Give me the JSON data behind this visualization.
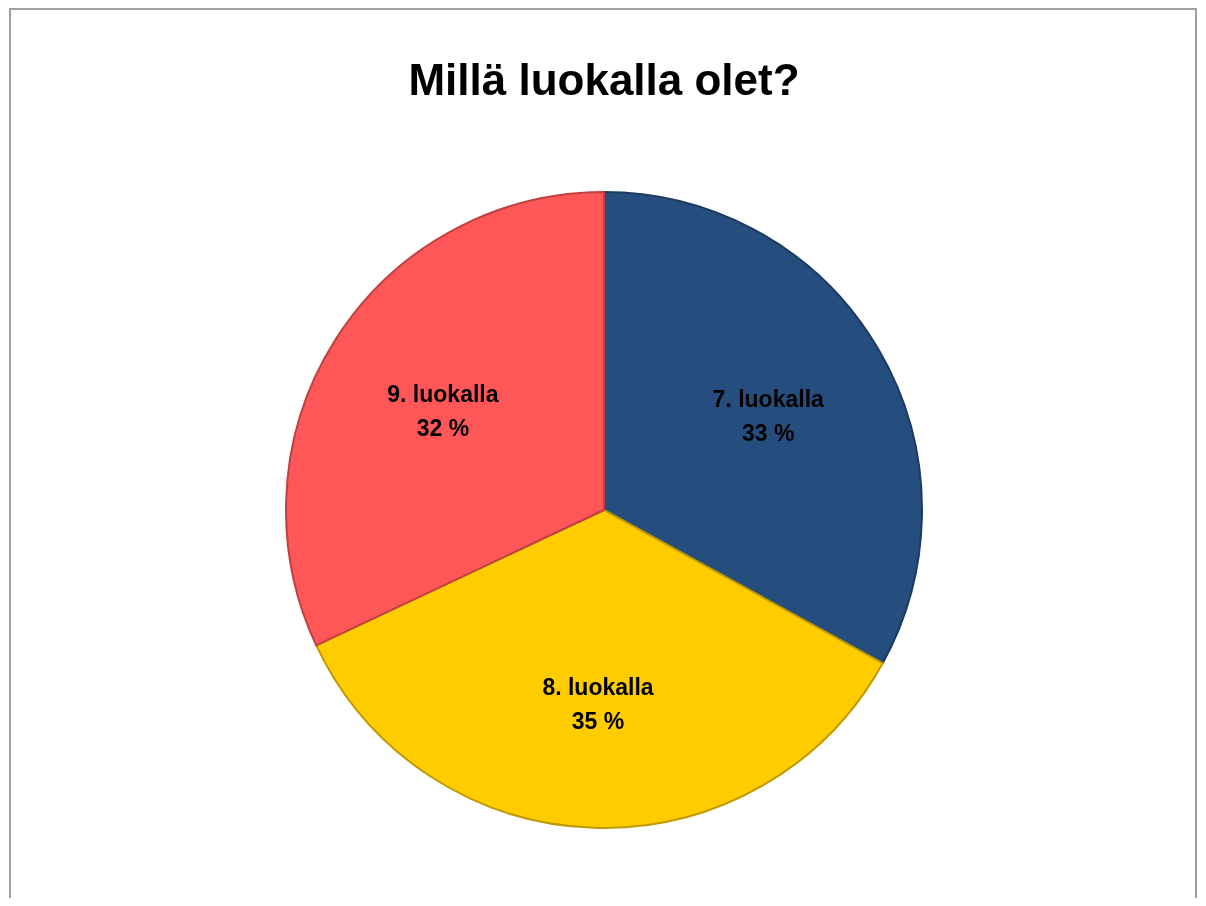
{
  "chart_data": {
    "type": "pie",
    "title": "Millä luokalla olet?",
    "categories": [
      "7. luokalla",
      "8. luokalla",
      "9. luokalla"
    ],
    "values": [
      33,
      35,
      32
    ],
    "colors": [
      "#254e7f",
      "#ffcc00",
      "#ff5757"
    ],
    "value_labels": [
      "33 %",
      "35 %",
      "32 %"
    ]
  }
}
